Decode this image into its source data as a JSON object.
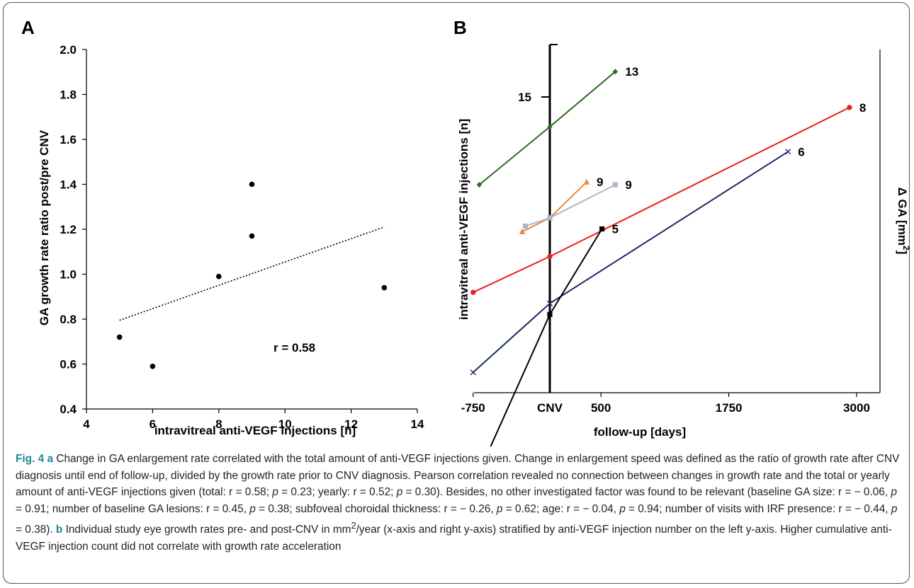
{
  "chart_data": [
    {
      "type": "scatter",
      "panel_label": "A",
      "xlabel": "intravitreal anti-VEGF injections [n]",
      "ylabel": "GA growth rate ratio post/pre CNV",
      "xlim": [
        4,
        14
      ],
      "ylim": [
        0.4,
        2.0
      ],
      "x_ticks": [
        "4",
        "6",
        "8",
        "10",
        "12",
        "14"
      ],
      "y_ticks": [
        "0.4",
        "0.6",
        "0.8",
        "1.0",
        "1.2",
        "1.4",
        "1.6",
        "1.8",
        "2.0"
      ],
      "points": [
        {
          "x": 5,
          "y": 0.72
        },
        {
          "x": 6,
          "y": 0.59
        },
        {
          "x": 8,
          "y": 0.99
        },
        {
          "x": 9,
          "y": 1.4
        },
        {
          "x": 9,
          "y": 1.17
        },
        {
          "x": 13,
          "y": 0.94
        }
      ],
      "trendline": {
        "x": [
          5,
          13
        ],
        "y": [
          0.795,
          1.21
        ]
      },
      "annotation": "r = 0.58",
      "grid": false
    },
    {
      "type": "line",
      "panel_label": "B",
      "xlabel": "follow-up [days]",
      "ylabel_left": "intravitreal anti-VEGF injections [n]",
      "ylabel_right": "Δ GA [mm",
      "ylabel_right_sup": "2",
      "ylabel_right_end": "]",
      "xlim": [
        -880,
        3200
      ],
      "x_ticks": [
        {
          "value": -750,
          "label": "-750"
        },
        {
          "value": 500,
          "label": "500"
        },
        {
          "value": 1750,
          "label": "1750"
        },
        {
          "value": 3000,
          "label": "3000"
        }
      ],
      "cnv_label": "CNV",
      "left_axis_label": "15",
      "series": [
        {
          "label": "13",
          "color": "#2e6a22",
          "marker": "diamond",
          "x": [
            -690,
            0,
            640
          ],
          "y": [
            0.31,
            0.52,
            0.72
          ]
        },
        {
          "label": "8",
          "color": "#ee1c1c",
          "marker": "circle",
          "x": [
            -750,
            0,
            2930
          ],
          "y": [
            -0.08,
            0.05,
            0.59
          ]
        },
        {
          "label": "9",
          "color": "#e8893a",
          "marker": "triangle",
          "x": [
            -270,
            0,
            360
          ],
          "y": [
            0.14,
            0.19,
            0.32
          ]
        },
        {
          "label": "9",
          "color": "#a9b7cf",
          "marker": "square",
          "x": [
            -240,
            0,
            640
          ],
          "y": [
            0.16,
            0.19,
            0.31
          ]
        },
        {
          "label": "6",
          "color": "#1c2a66",
          "marker": "x",
          "x": [
            -750,
            0,
            2330
          ],
          "y": [
            -0.37,
            -0.12,
            0.43
          ]
        },
        {
          "label": "5",
          "color": "#000000",
          "marker": "square",
          "x": [
            -750,
            0,
            510
          ],
          "y": [
            -0.78,
            -0.16,
            0.15
          ]
        }
      ],
      "grid": false
    }
  ],
  "caption": {
    "fig_label": "Fig. 4",
    "a_label": "a",
    "text1": " Change in GA enlargement rate correlated with the total amount of anti-VEGF injections given. Change in enlargement speed was defined as the ratio of growth rate after CNV diagnosis until end of follow-up, divided by the growth rate prior to CNV diagnosis. Pearson correlation revealed no connection between changes in growth rate and the total or yearly amount of anti-VEGF injections given (total: r = 0.58; ",
    "p_label": "p",
    "text2": " = 0.23; yearly: r = 0.52; ",
    "text3": " = 0.30). Besides, no other investigated factor was found to be relevant (baseline GA size: r = − 0.06, ",
    "text4": " = 0.91; number of baseline GA lesions: r = 0.45, ",
    "text5": " = 0.38; subfoveal choroidal thickness: r = − 0.26, ",
    "text6": " = 0.62; age: r = − 0.04, ",
    "text7": " = 0.94; number of visits with IRF presence: r = − 0.44, ",
    "text8": " = 0.38). ",
    "b_label": "b",
    "text9": " Individual study eye growth rates pre- and post-CNV in mm",
    "sup": "2",
    "text10": "/year (x-axis and right y-axis) stratified by anti-VEGF injection number on the left y-axis. Higher cumulative anti-VEGF injection count did not correlate with growth rate acceleration"
  }
}
